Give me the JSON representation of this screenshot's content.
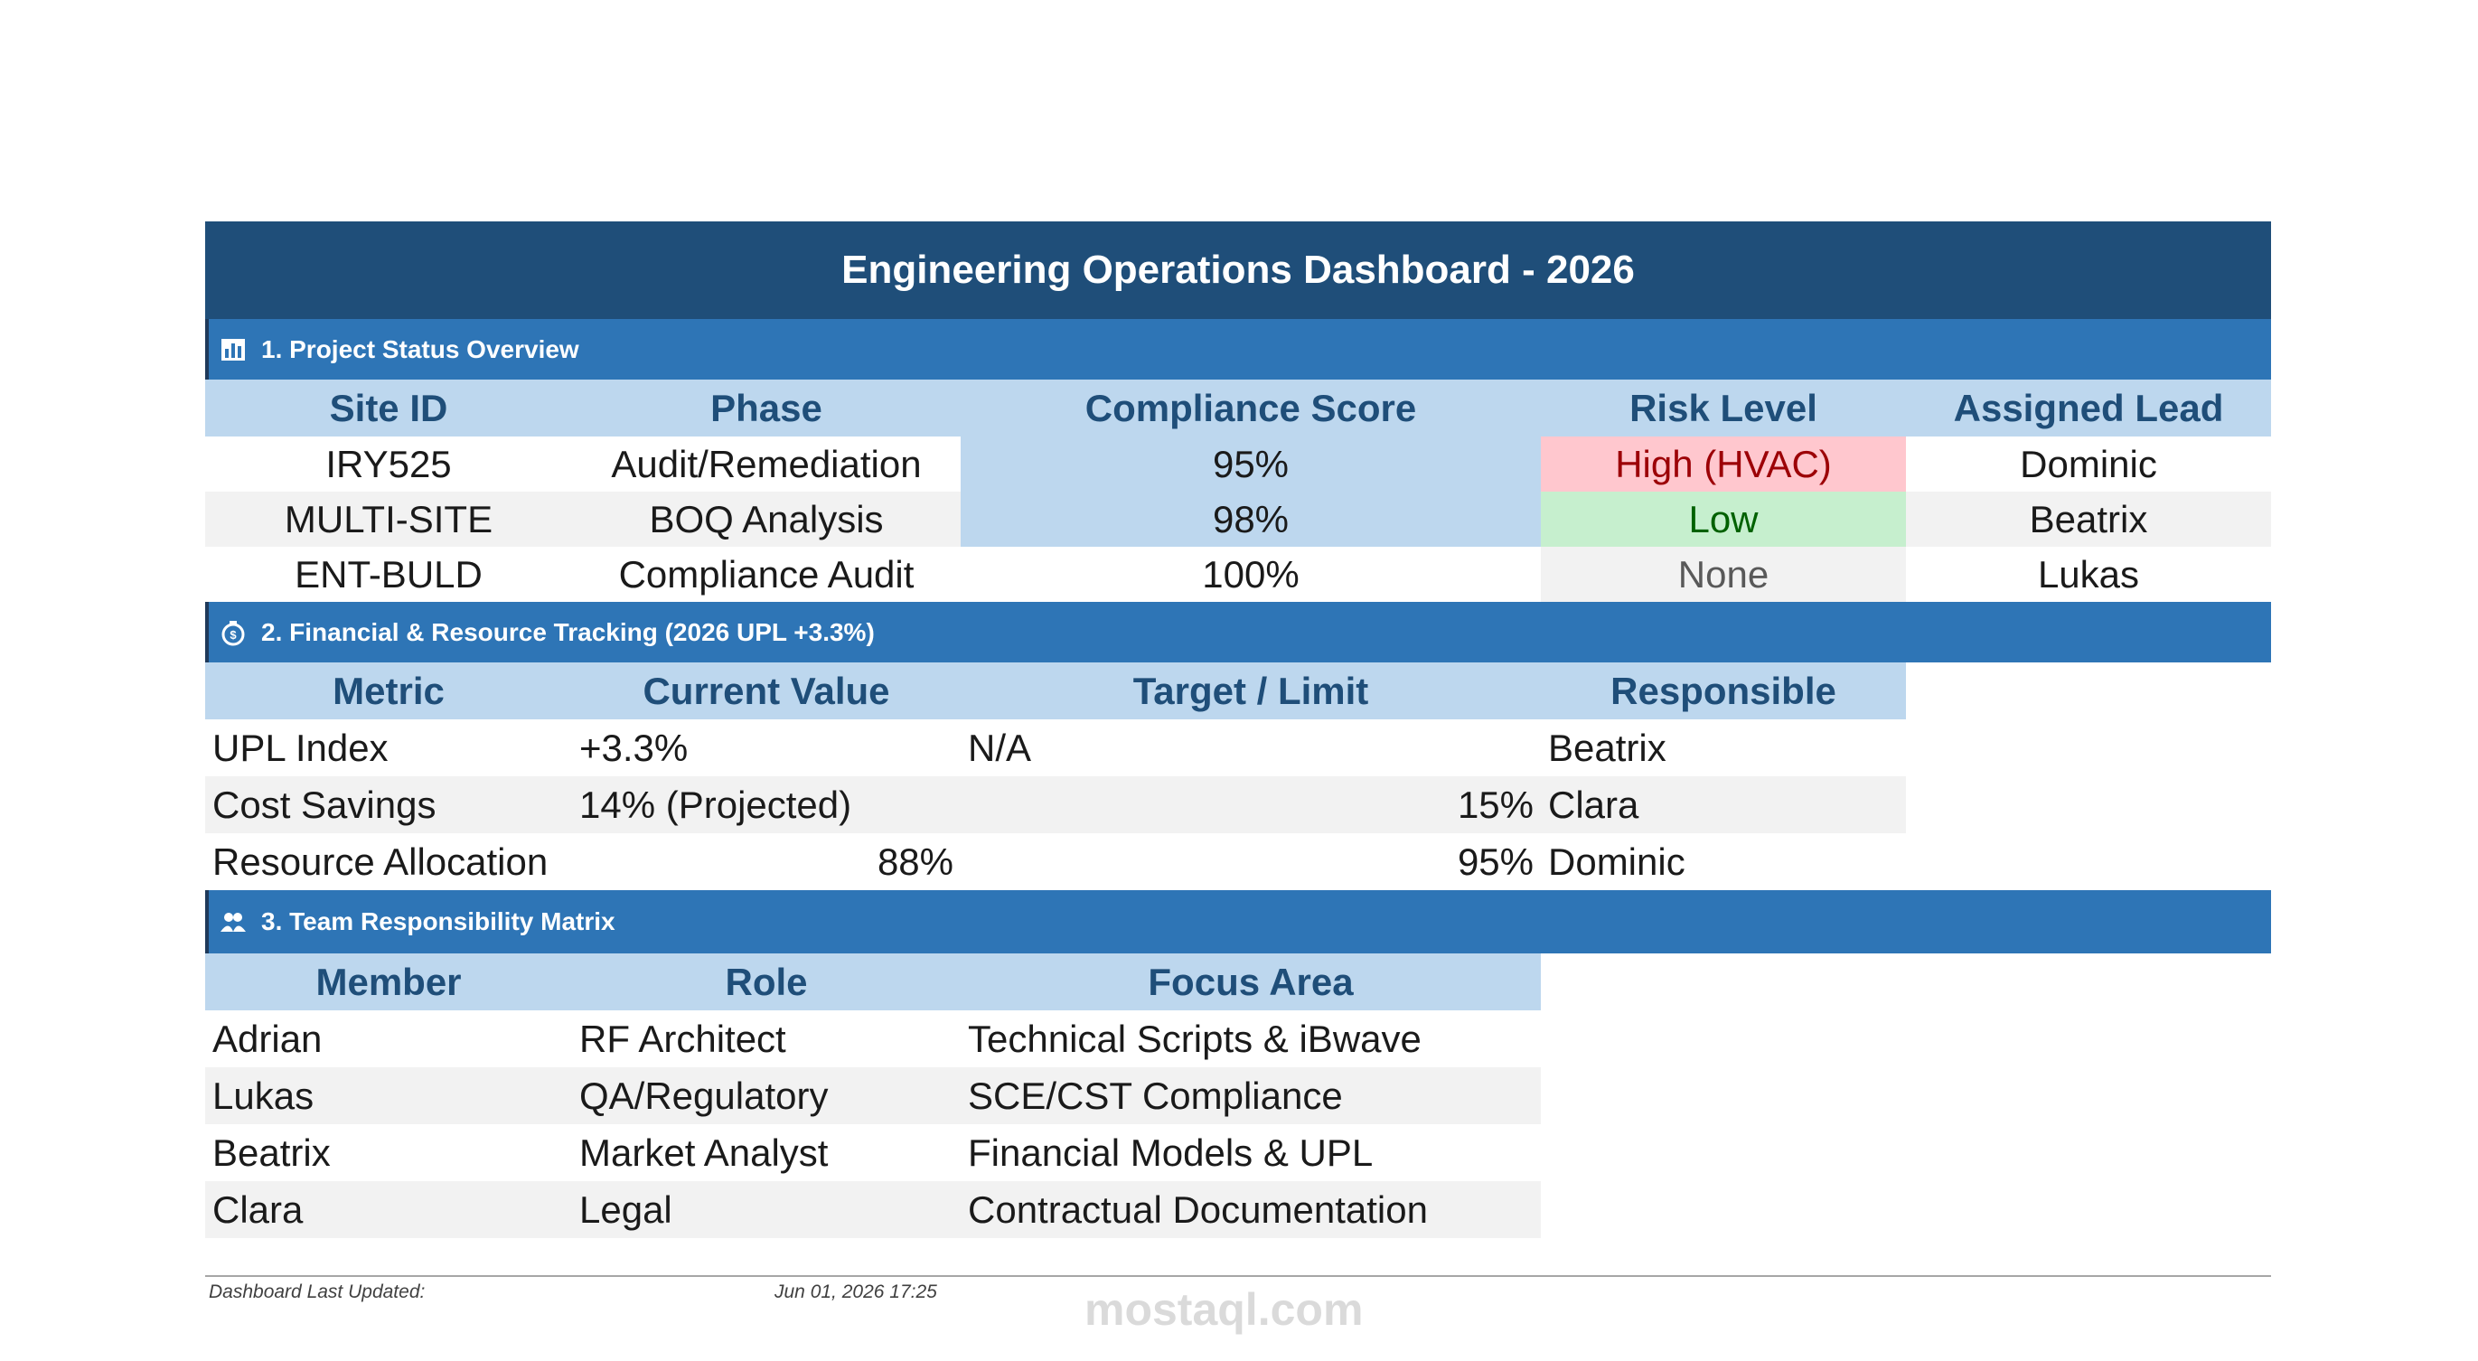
{
  "title": "Engineering Operations Dashboard - 2026",
  "sections": [
    {
      "heading": "1. Project Status Overview",
      "table": {
        "columns": [
          "Site ID",
          "Phase",
          "Compliance Score",
          "Risk Level",
          "Assigned Lead"
        ],
        "rows": [
          [
            "IRY525",
            "Audit/Remediation",
            "95%",
            "High (HVAC)",
            "Dominic"
          ],
          [
            "MULTI-SITE",
            "BOQ Analysis",
            "98%",
            "Low",
            "Beatrix"
          ],
          [
            "ENT-BULD",
            "Compliance Audit",
            "100%",
            "None",
            "Lukas"
          ]
        ]
      }
    },
    {
      "heading": "2. Financial & Resource Tracking (2026 UPL +3.3%)",
      "table": {
        "columns": [
          "Metric",
          "Current Value",
          "Target / Limit",
          "Responsible"
        ],
        "rows": [
          [
            "UPL Index",
            "+3.3%",
            "N/A",
            "Beatrix"
          ],
          [
            "Cost Savings",
            "14% (Projected)",
            "15%",
            "Clara"
          ],
          [
            "Resource Allocation",
            "88%",
            "95%",
            "Dominic"
          ]
        ]
      }
    },
    {
      "heading": "3. Team Responsibility Matrix",
      "table": {
        "columns": [
          "Member",
          "Role",
          "Focus Area"
        ],
        "rows": [
          [
            "Adrian",
            "RF Architect",
            "Technical Scripts & iBwave"
          ],
          [
            "Lukas",
            "QA/Regulatory",
            "SCE/CST Compliance"
          ],
          [
            "Beatrix",
            "Market Analyst",
            "Financial Models & UPL"
          ],
          [
            "Clara",
            "Legal",
            "Contractual Documentation"
          ]
        ]
      }
    }
  ],
  "footer": {
    "label": "Dashboard Last Updated:",
    "value": "Jun 01, 2026 17:25"
  },
  "watermark": "mostaql.com"
}
